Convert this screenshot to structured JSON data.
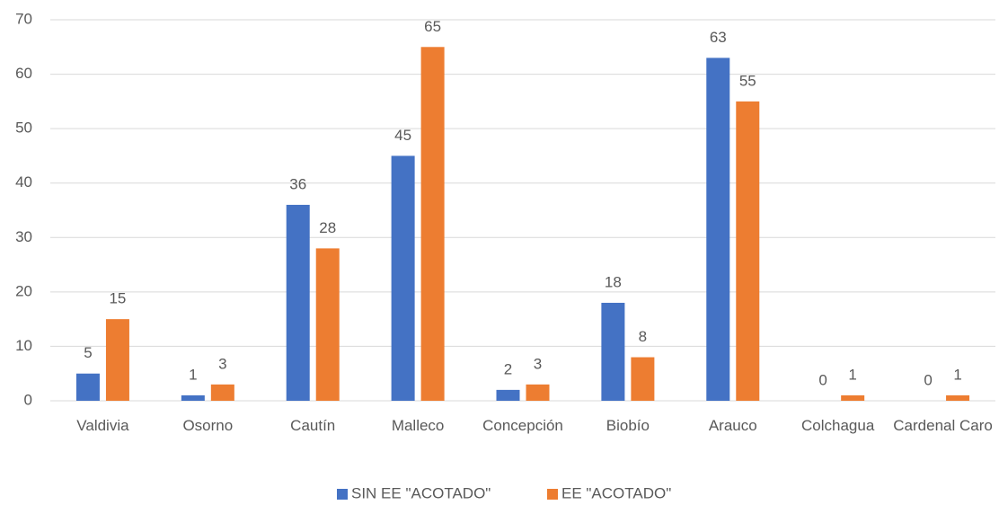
{
  "chart_data": {
    "type": "bar",
    "categories": [
      "Valdivia",
      "Osorno",
      "Cautín",
      "Malleco",
      "Concepción",
      "Biobío",
      "Arauco",
      "Colchagua",
      "Cardenal Caro"
    ],
    "series": [
      {
        "name": "SIN EE \"ACOTADO\"",
        "color": "#4472c4",
        "values": [
          5,
          1,
          36,
          45,
          2,
          18,
          63,
          0,
          0
        ]
      },
      {
        "name": "EE \"ACOTADO\"",
        "color": "#ed7d31",
        "values": [
          15,
          3,
          28,
          65,
          3,
          8,
          55,
          1,
          1
        ]
      }
    ],
    "ylim": [
      0,
      70
    ],
    "yticks": [
      0,
      10,
      20,
      30,
      40,
      50,
      60,
      70
    ],
    "grid": true,
    "legend": "bottom"
  }
}
